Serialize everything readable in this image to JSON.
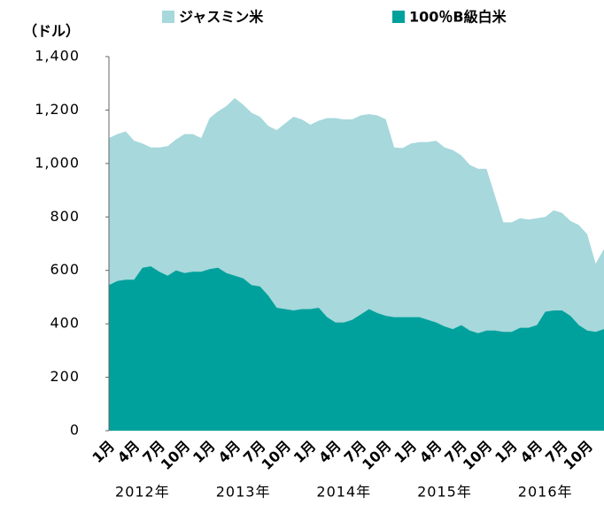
{
  "chart_data": {
    "type": "area",
    "y_axis_label": "（ドル）",
    "categories": [
      "1月",
      null,
      null,
      "4月",
      null,
      null,
      "7月",
      null,
      null,
      "10月",
      null,
      null,
      "1月",
      null,
      null,
      "4月",
      null,
      null,
      "7月",
      null,
      null,
      "10月",
      null,
      null,
      "1月",
      null,
      null,
      "4月",
      null,
      null,
      "7月",
      null,
      null,
      "10月",
      null,
      null,
      "1月",
      null,
      null,
      "4月",
      null,
      null,
      "7月",
      null,
      null,
      "10月",
      null,
      null,
      "1月",
      null,
      null,
      "4月",
      null,
      null,
      "7月",
      null,
      null,
      "10月",
      null,
      null
    ],
    "year_labels": [
      "2012年",
      "2013年",
      "2014年",
      "2015年",
      "2016年"
    ],
    "series": [
      {
        "name": "ジャスミン米",
        "color": "#a6d8dc",
        "values": [
          1095,
          1110,
          1120,
          1085,
          1075,
          1060,
          1060,
          1065,
          1090,
          1110,
          1110,
          1095,
          1170,
          1195,
          1215,
          1245,
          1220,
          1190,
          1175,
          1140,
          1125,
          1150,
          1175,
          1165,
          1145,
          1160,
          1170,
          1170,
          1165,
          1165,
          1180,
          1185,
          1180,
          1165,
          1060,
          1058,
          1075,
          1080,
          1080,
          1085,
          1060,
          1050,
          1030,
          995,
          980,
          980,
          880,
          780,
          780,
          795,
          790,
          795,
          800,
          825,
          815,
          785,
          770,
          735,
          625,
          680
        ]
      },
      {
        "name": "100％B級白米",
        "color": "#00a19c",
        "values": [
          545,
          560,
          565,
          565,
          610,
          615,
          595,
          580,
          600,
          590,
          595,
          595,
          605,
          610,
          590,
          580,
          570,
          545,
          540,
          505,
          460,
          455,
          450,
          455,
          455,
          460,
          425,
          405,
          405,
          415,
          435,
          455,
          440,
          430,
          425,
          425,
          425,
          425,
          415,
          405,
          390,
          380,
          395,
          375,
          365,
          375,
          375,
          370,
          370,
          385,
          385,
          395,
          445,
          450,
          450,
          430,
          395,
          375,
          370,
          380
        ]
      }
    ],
    "ylim": [
      0,
      1400
    ],
    "yticks": [
      0,
      200,
      400,
      600,
      800,
      {
        "value": 1000,
        "label": "1,000"
      },
      {
        "value": 1200,
        "label": "1,200"
      },
      {
        "value": 1400,
        "label": "1,400"
      }
    ],
    "stacked": false
  }
}
